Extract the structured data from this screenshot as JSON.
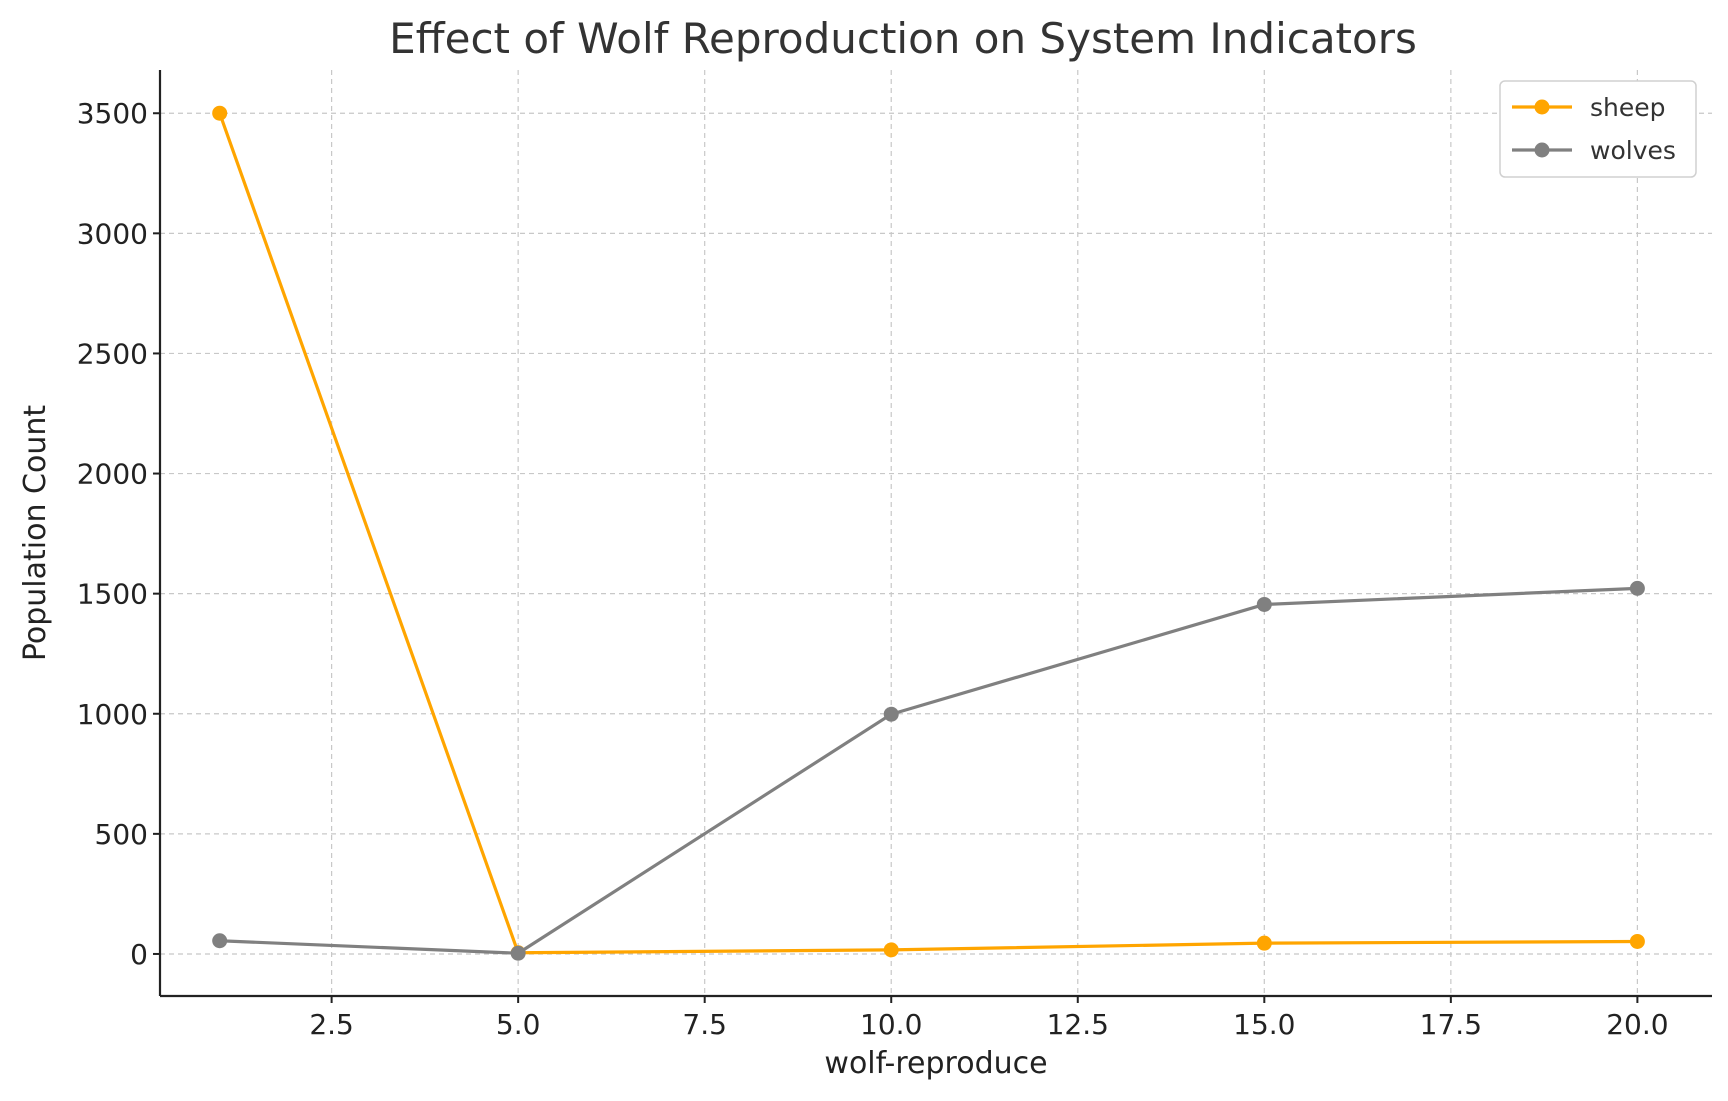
{
  "chart_data": {
    "type": "line",
    "title": "Effect of Wolf Reproduction on System Indicators",
    "xlabel": "wolf-reproduce",
    "ylabel": "Population Count",
    "xlim": [
      0.2,
      21.0
    ],
    "ylim": [
      -175,
      3680
    ],
    "xticks": [
      2.5,
      5.0,
      7.5,
      10.0,
      12.5,
      15.0,
      17.5,
      20.0
    ],
    "xtick_labels": [
      "2.5",
      "5.0",
      "7.5",
      "10.0",
      "12.5",
      "15.0",
      "17.5",
      "20.0"
    ],
    "yticks": [
      0,
      500,
      1000,
      1500,
      2000,
      2500,
      3000,
      3500
    ],
    "ytick_labels": [
      "0",
      "500",
      "1000",
      "1500",
      "2000",
      "2500",
      "3000",
      "3500"
    ],
    "grid": true,
    "legend_position": "top-right",
    "x": [
      1,
      5,
      10,
      15,
      20
    ],
    "series": [
      {
        "name": "sheep",
        "color": "#FFA500",
        "values": [
          3500,
          5,
          17,
          45,
          52
        ]
      },
      {
        "name": "wolves",
        "color": "#808080",
        "values": [
          55,
          3,
          998,
          1455,
          1522
        ]
      }
    ]
  }
}
